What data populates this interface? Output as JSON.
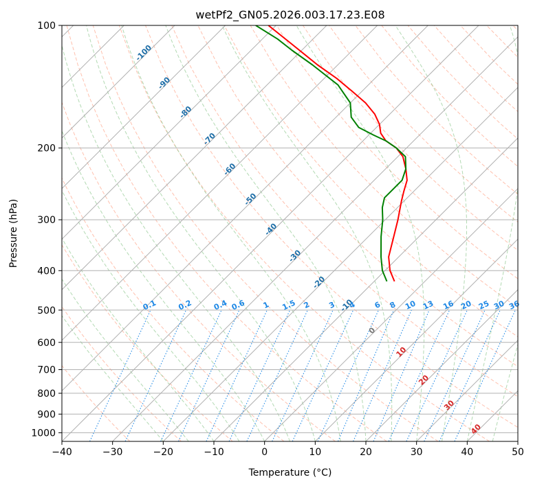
{
  "chart_data": {
    "type": "skew-t",
    "title": "wetPf2_GN05.2026.003.17.23.E08",
    "xlabel": "Temperature (°C)",
    "ylabel": "Pressure (hPa)",
    "xlim": [
      -40,
      50
    ],
    "ylim": [
      1050,
      100
    ],
    "x_ticks": [
      "−40",
      "−30",
      "−20",
      "−10",
      "0",
      "10",
      "20",
      "30",
      "40",
      "50"
    ],
    "y_ticks": [
      "100",
      "200",
      "300",
      "400",
      "500",
      "600",
      "700",
      "800",
      "900",
      "1000"
    ],
    "isotherm_labels": [
      {
        "value": -100,
        "label": "-100",
        "p": 118
      },
      {
        "value": -90,
        "label": "-90",
        "p": 140
      },
      {
        "value": -80,
        "label": "-80",
        "p": 165
      },
      {
        "value": -70,
        "label": "-70",
        "p": 192
      },
      {
        "value": -60,
        "label": "-60",
        "p": 228
      },
      {
        "value": -50,
        "label": "-50",
        "p": 270
      },
      {
        "value": -40,
        "label": "-40",
        "p": 320
      },
      {
        "value": -30,
        "label": "-30",
        "p": 372
      },
      {
        "value": -20,
        "label": "-20",
        "p": 432
      },
      {
        "value": -10,
        "label": "-10",
        "p": 492
      },
      {
        "value": 0,
        "label": "0",
        "p": 567
      },
      {
        "value": 10,
        "label": "10",
        "p": 640
      },
      {
        "value": 20,
        "label": "20",
        "p": 750
      },
      {
        "value": 30,
        "label": "30",
        "p": 865
      },
      {
        "value": 40,
        "label": "40",
        "p": 990
      }
    ],
    "mixing_ratio_labels": [
      "0.1",
      "0.2",
      "0.4",
      "0.6",
      "1",
      "1.5",
      "2",
      "3",
      "4",
      "6",
      "8",
      "10",
      "13",
      "16",
      "20",
      "25",
      "30",
      "36"
    ],
    "mixing_ratio_label_x": [
      -22.5,
      -15.5,
      -8.5,
      -5,
      0.5,
      5,
      8.5,
      13.5,
      17.5,
      22.5,
      25.5,
      29,
      32.5,
      36.5,
      40,
      43.5,
      46.5,
      49.5
    ],
    "mixing_ratio_lines_x_at_1000": [
      -34.5,
      -27.5,
      -20.5,
      -17,
      -11.5,
      -7,
      -3.5,
      1.5,
      5.5,
      10.5,
      14.5,
      17.5,
      21.5,
      24.5,
      28,
      31.5,
      34.5,
      37.5
    ],
    "series": [
      {
        "name": "Temperature",
        "color": "#ff0000",
        "points": [
          {
            "p": 425,
            "t": -6
          },
          {
            "p": 400,
            "t": -9
          },
          {
            "p": 370,
            "t": -12
          },
          {
            "p": 330,
            "t": -15
          },
          {
            "p": 300,
            "t": -17.5
          },
          {
            "p": 270,
            "t": -20.5
          },
          {
            "p": 255,
            "t": -22
          },
          {
            "p": 240,
            "t": -23.5
          },
          {
            "p": 225,
            "t": -26
          },
          {
            "p": 210,
            "t": -29
          },
          {
            "p": 200,
            "t": -32
          },
          {
            "p": 192,
            "t": -35.5
          },
          {
            "p": 184,
            "t": -38
          },
          {
            "p": 175,
            "t": -40
          },
          {
            "p": 165,
            "t": -43
          },
          {
            "p": 155,
            "t": -47
          },
          {
            "p": 145,
            "t": -52
          },
          {
            "p": 135,
            "t": -57.5
          },
          {
            "p": 125,
            "t": -64
          },
          {
            "p": 118,
            "t": -68.5
          },
          {
            "p": 110,
            "t": -74
          },
          {
            "p": 100,
            "t": -81.5
          }
        ]
      },
      {
        "name": "Dewpoint",
        "color": "#008000",
        "points": [
          {
            "p": 425,
            "t": -7.5
          },
          {
            "p": 400,
            "t": -10.5
          },
          {
            "p": 370,
            "t": -13.5
          },
          {
            "p": 330,
            "t": -17.5
          },
          {
            "p": 300,
            "t": -20.5
          },
          {
            "p": 280,
            "t": -23
          },
          {
            "p": 265,
            "t": -24.5
          },
          {
            "p": 255,
            "t": -24.5
          },
          {
            "p": 240,
            "t": -24.5
          },
          {
            "p": 225,
            "t": -26
          },
          {
            "p": 210,
            "t": -28.5
          },
          {
            "p": 200,
            "t": -32
          },
          {
            "p": 192,
            "t": -35.5
          },
          {
            "p": 186,
            "t": -39
          },
          {
            "p": 178,
            "t": -43.5
          },
          {
            "p": 168,
            "t": -47
          },
          {
            "p": 155,
            "t": -50
          },
          {
            "p": 140,
            "t": -56
          },
          {
            "p": 125,
            "t": -65
          },
          {
            "p": 115,
            "t": -72
          },
          {
            "p": 108,
            "t": -77
          },
          {
            "p": 100,
            "t": -84
          }
        ]
      }
    ],
    "colors": {
      "isotherm_label": "#1f6fa8",
      "isotherm_label_warm": "#d62728",
      "isotherm_label_zero": "#777777",
      "mixing": "#1e88e5",
      "dry_adiabat": "#ff8c69",
      "moist_adiabat": "#7fbf7f",
      "grid": "#b0b0b0"
    }
  }
}
